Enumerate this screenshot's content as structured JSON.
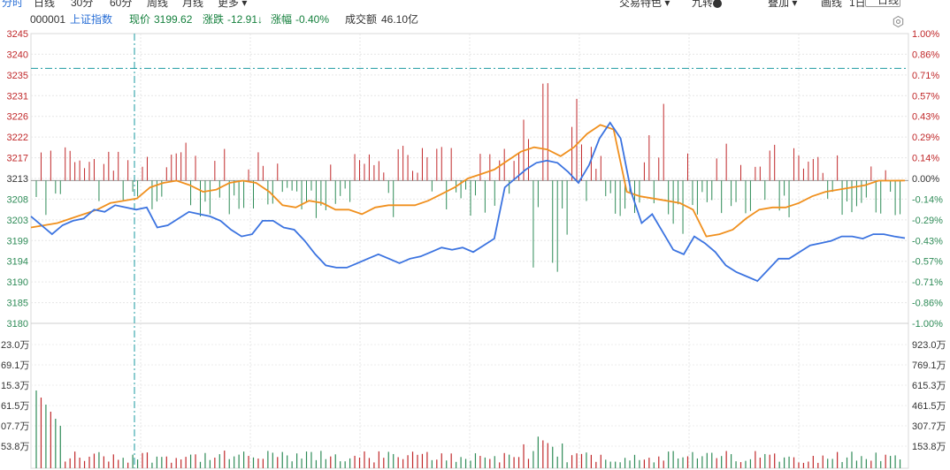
{
  "tabs": [
    {
      "label": "分时",
      "active": true
    },
    {
      "label": "日线"
    },
    {
      "label": "30分"
    },
    {
      "label": "60分"
    },
    {
      "label": "周线"
    },
    {
      "label": "月线"
    },
    {
      "label": "更多 ▾"
    }
  ],
  "toolbar_right": {
    "feature": "交易特色 ▾",
    "level": "九转",
    "overlay": "叠加 ▾",
    "draw": "画线",
    "days": "1日",
    "period": "一日线 ▾"
  },
  "info": {
    "code": "000001",
    "name": "上证指数",
    "price_label": "现价",
    "price": "3199.62",
    "change_label": "涨跌",
    "change": "-12.91↓",
    "pct_label": "涨幅",
    "pct": "-0.40%",
    "amount_label": "成交额",
    "amount": "46.10亿"
  },
  "colors": {
    "up": "#c0282a",
    "down": "#2e8b57",
    "price_line": "#3b73e0",
    "avg_line": "#f0901e",
    "ref_line": "#1a9aa0"
  },
  "chart_data": {
    "type": "line",
    "price_axis": {
      "ticks": [
        "3245",
        "3240",
        "3235",
        "3231",
        "3226",
        "3222",
        "3217",
        "3213",
        "3208",
        "3203",
        "3199",
        "3194",
        "3190",
        "3185",
        "3180"
      ],
      "min": 3180.5,
      "max": 3245.5,
      "prev_close": 3212.53
    },
    "pct_axis": {
      "ticks": [
        "1.00%",
        "0.86%",
        "0.71%",
        "0.57%",
        "0.43%",
        "0.29%",
        "0.14%",
        "0.00%",
        "-0.14%",
        "-0.29%",
        "-0.43%",
        "-0.57%",
        "-0.71%",
        "-0.86%",
        "-1.00%"
      ]
    },
    "reference_line": 3237.7,
    "volume_axis": {
      "left_ticks": [
        "23.0万",
        "69.1万",
        "15.3万",
        "61.5万",
        "07.7万",
        "53.8万"
      ],
      "right_ticks": [
        "923.0万",
        "769.1万",
        "615.3万",
        "461.5万",
        "307.7万",
        "153.8万"
      ]
    },
    "series": [
      {
        "role": "price",
        "values": [
          3204.5,
          3202.5,
          3200.5,
          3202.5,
          3203.5,
          3204.0,
          3206.0,
          3205.5,
          3207.0,
          3206.5,
          3206.0,
          3206.5,
          3202.0,
          3202.5,
          3204.0,
          3205.5,
          3205.0,
          3204.5,
          3203.5,
          3201.5,
          3200.0,
          3200.5,
          3203.5,
          3203.5,
          3202.0,
          3201.5,
          3199.0,
          3196.0,
          3193.5,
          3193.0,
          3193.0,
          3194.0,
          3195.0,
          3196.0,
          3195.0,
          3194.0,
          3195.0,
          3195.5,
          3196.5,
          3197.5,
          3197.0,
          3197.5,
          3196.5,
          3198.0,
          3199.5,
          3211.0,
          3213.0,
          3215.0,
          3216.5,
          3217.0,
          3216.5,
          3214.5,
          3212.0,
          3216.0,
          3222.0,
          3225.5,
          3222.0,
          3210.0,
          3203.0,
          3205.0,
          3201.0,
          3197.0,
          3196.0,
          3200.0,
          3198.5,
          3196.5,
          3193.5,
          3192.0,
          3191.0,
          3190.0,
          3192.5,
          3195.0,
          3195.0,
          3196.5,
          3198.0,
          3198.5,
          3199.0,
          3200.0,
          3200.0,
          3199.5,
          3200.5,
          3200.5,
          3200.0,
          3199.62
        ]
      },
      {
        "role": "average",
        "values": [
          3202.0,
          3202.5,
          3203.0,
          3204.0,
          3205.0,
          3206.0,
          3207.5,
          3208.0,
          3208.5,
          3211.0,
          3212.0,
          3212.5,
          3211.5,
          3210.0,
          3210.5,
          3212.0,
          3212.5,
          3212.0,
          3210.0,
          3207.0,
          3206.5,
          3208.0,
          3207.5,
          3206.0,
          3206.0,
          3205.0,
          3206.5,
          3207.0,
          3207.0,
          3207.0,
          3208.0,
          3209.5,
          3211.0,
          3213.0,
          3214.0,
          3215.0,
          3217.0,
          3219.0,
          3220.0,
          3219.5,
          3218.0,
          3220.0,
          3223.0,
          3225.0,
          3224.0,
          3210.0,
          3209.0,
          3208.5,
          3208.0,
          3207.5,
          3206.0,
          3200.0,
          3200.5,
          3201.5,
          3204.0,
          3206.0,
          3206.5,
          3206.5,
          3207.5,
          3209.0,
          3210.0,
          3210.5,
          3211.0,
          3211.5,
          3212.5,
          3212.5,
          3212.53
        ]
      }
    ]
  }
}
